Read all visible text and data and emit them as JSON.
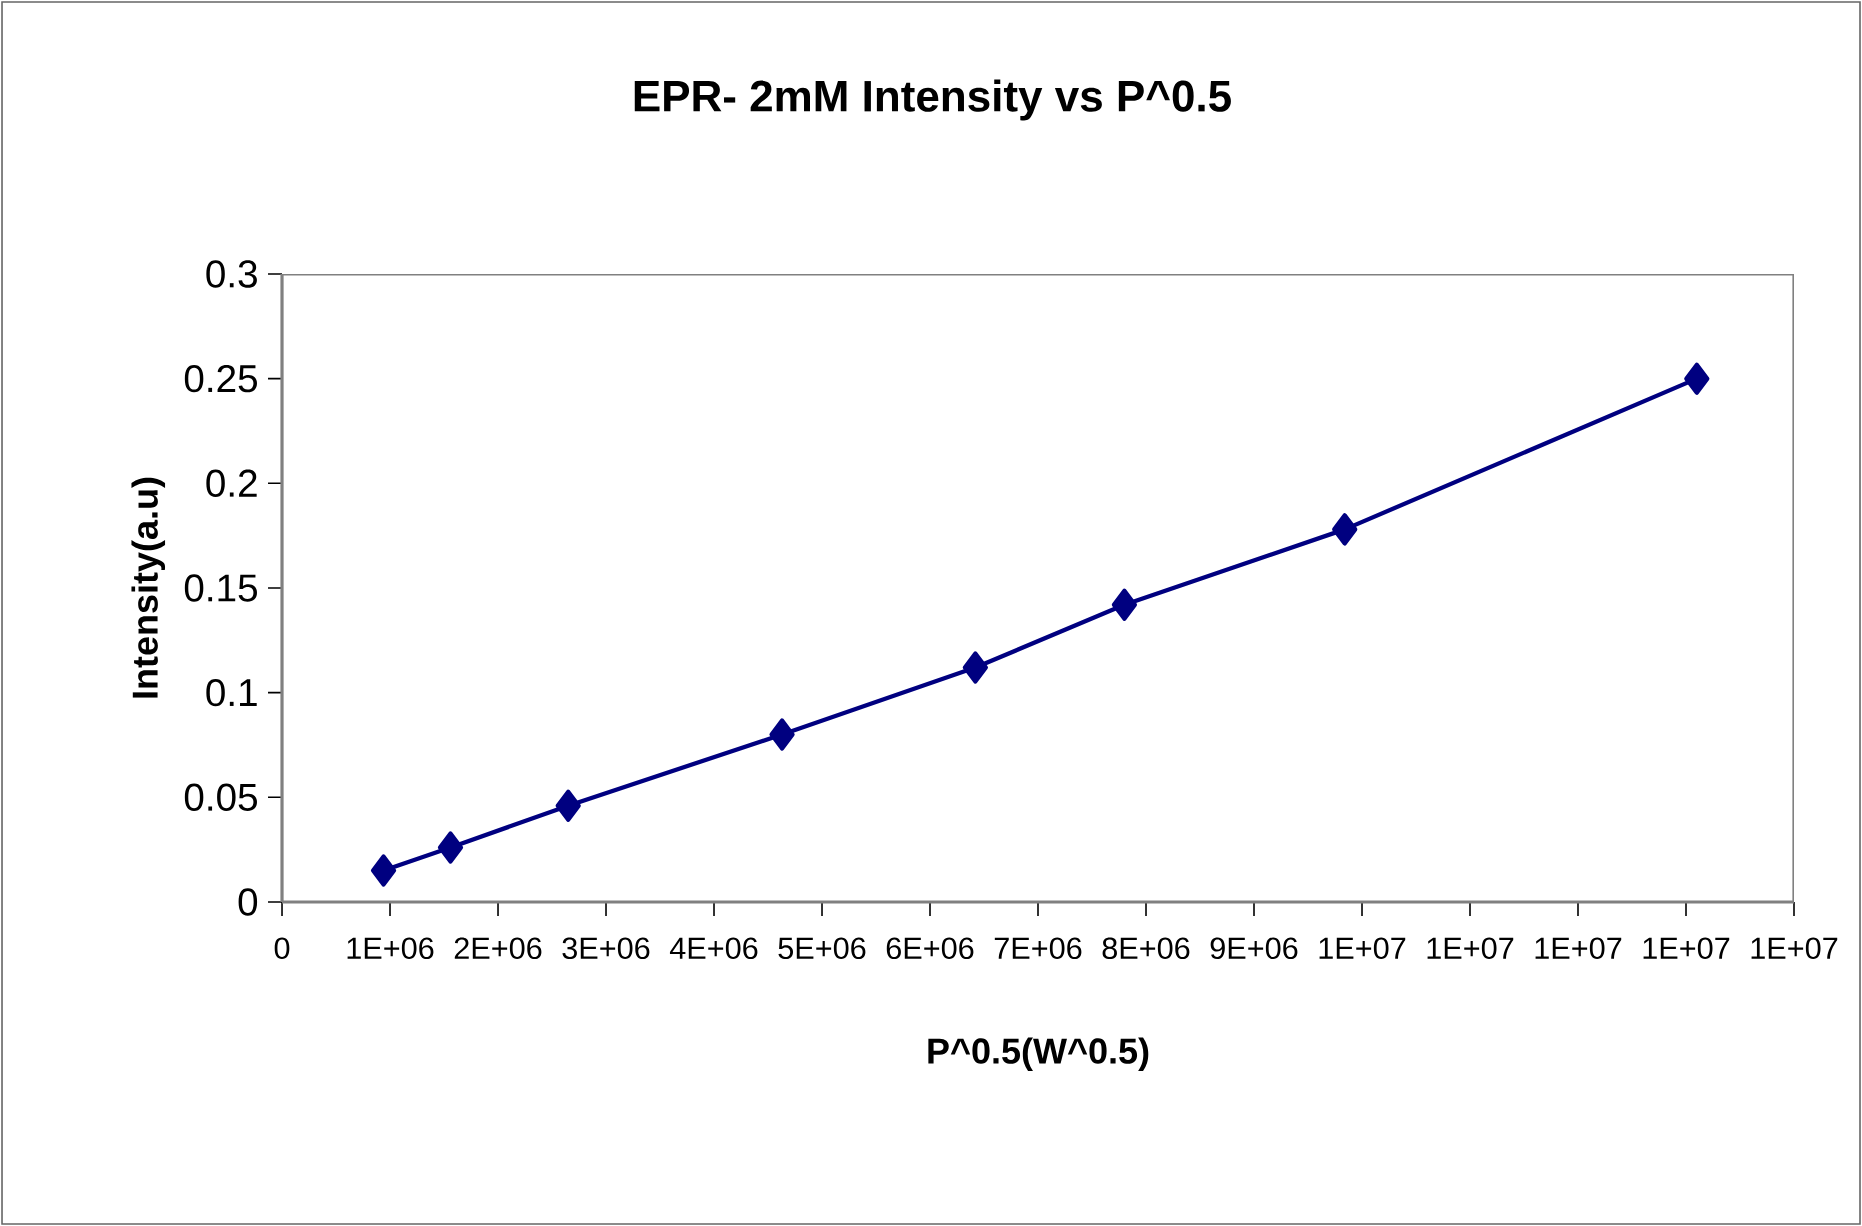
{
  "chart_data": {
    "type": "line",
    "title": "EPR- 2mM Intensity vs P^0.5",
    "xlabel": "P^0.5(W^0.5)",
    "ylabel": "Intensity(a.u)",
    "x": [
      940000,
      1560000,
      2650000,
      4630000,
      6420000,
      7800000,
      9840000,
      13100000
    ],
    "series": [
      {
        "color": "#000080",
        "values": [
          0.015,
          0.026,
          0.046,
          0.08,
          0.112,
          0.142,
          0.178,
          0.25
        ]
      }
    ],
    "xlim": [
      0,
      14000000
    ],
    "ylim": [
      0,
      0.3
    ],
    "xticks": [
      0,
      {
        "value": 1000000,
        "label": "1E+06"
      },
      {
        "value": 2000000,
        "label": "2E+06"
      },
      {
        "value": 3000000,
        "label": "3E+06"
      },
      {
        "value": 4000000,
        "label": "4E+06"
      },
      {
        "value": 5000000,
        "label": "5E+06"
      },
      {
        "value": 6000000,
        "label": "6E+06"
      },
      {
        "value": 7000000,
        "label": "7E+06"
      },
      {
        "value": 8000000,
        "label": "8E+06"
      },
      {
        "value": 9000000,
        "label": "9E+06"
      },
      {
        "value": 10000000,
        "label": "1E+07"
      },
      {
        "value": 11000000,
        "label": "1E+07"
      },
      {
        "value": 12000000,
        "label": "1E+07"
      },
      {
        "value": 13000000,
        "label": "1E+07"
      },
      {
        "value": 14000000,
        "label": "1E+07"
      }
    ],
    "yticks": [
      0,
      0.05,
      0.1,
      0.15,
      0.2,
      0.25,
      0.3
    ],
    "marker": "diamond",
    "line_style": "solid"
  }
}
